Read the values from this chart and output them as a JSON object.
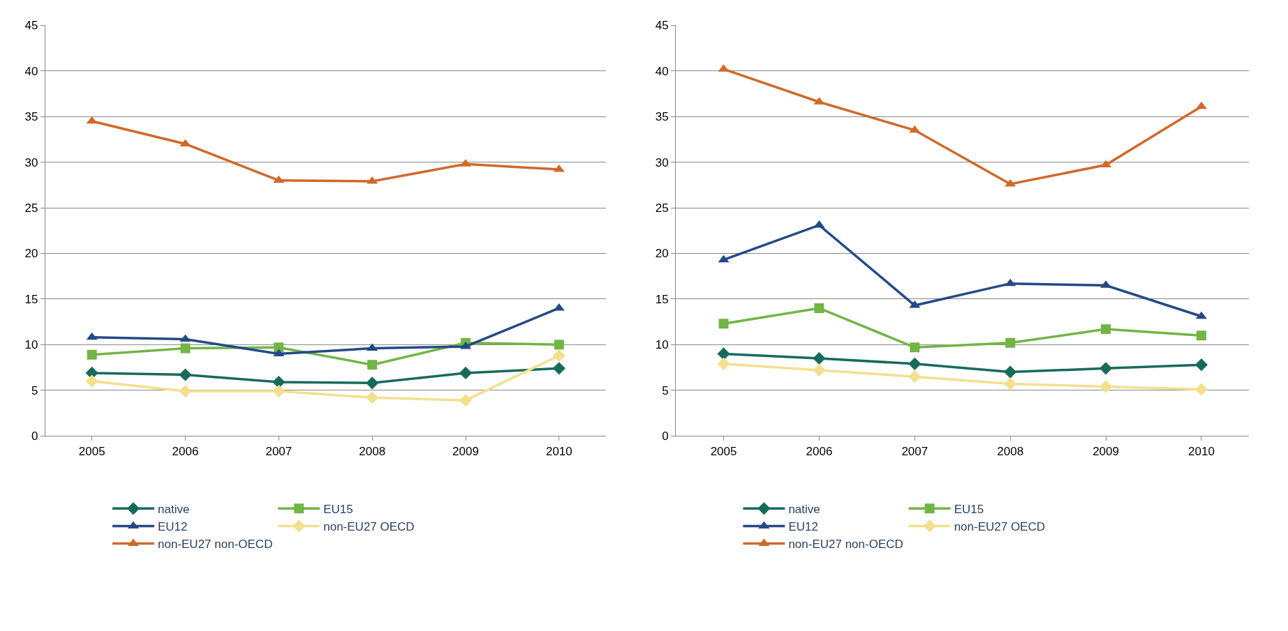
{
  "chart_data": [
    {
      "type": "line",
      "categories": [
        "2005",
        "2006",
        "2007",
        "2008",
        "2009",
        "2010"
      ],
      "ylim": [
        0,
        45
      ],
      "yticks": [
        0,
        5,
        10,
        15,
        20,
        25,
        30,
        35,
        40,
        45
      ],
      "grid": "y",
      "legend": "bottom",
      "line_style": "solid",
      "series": [
        {
          "name": "native",
          "color": "#176b5b",
          "marker": "diamond",
          "values": [
            6.9,
            6.7,
            5.9,
            5.8,
            6.9,
            7.4
          ]
        },
        {
          "name": "EU15",
          "color": "#71b545",
          "marker": "square",
          "values": [
            8.9,
            9.6,
            9.7,
            7.8,
            10.2,
            10.0
          ]
        },
        {
          "name": "EU12",
          "color": "#244a86",
          "marker": "triangle",
          "values": [
            10.8,
            10.6,
            9.0,
            9.6,
            9.8,
            14.0
          ]
        },
        {
          "name": "non-EU27 OECD",
          "color": "#f2e08e",
          "marker": "diamond",
          "values": [
            6.0,
            4.9,
            4.9,
            4.2,
            3.9,
            8.8
          ]
        },
        {
          "name": "non-EU27 non-OECD",
          "color": "#d0692a",
          "marker": "triangle",
          "values": [
            34.5,
            32.0,
            28.0,
            27.9,
            29.8,
            29.2
          ]
        }
      ]
    },
    {
      "type": "line",
      "categories": [
        "2005",
        "2006",
        "2007",
        "2008",
        "2009",
        "2010"
      ],
      "ylim": [
        0,
        45
      ],
      "yticks": [
        0,
        5,
        10,
        15,
        20,
        25,
        30,
        35,
        40,
        45
      ],
      "grid": "y",
      "legend": "bottom",
      "line_style": "solid",
      "series": [
        {
          "name": "native",
          "color": "#176b5b",
          "marker": "diamond",
          "values": [
            9.0,
            8.5,
            7.9,
            7.0,
            7.4,
            7.8
          ]
        },
        {
          "name": "EU15",
          "color": "#71b545",
          "marker": "square",
          "values": [
            12.3,
            14.0,
            9.7,
            10.2,
            11.7,
            11.0
          ]
        },
        {
          "name": "EU12",
          "color": "#244a86",
          "marker": "triangle",
          "values": [
            19.3,
            23.1,
            14.3,
            16.7,
            16.5,
            13.1
          ]
        },
        {
          "name": "non-EU27 OECD",
          "color": "#f2e08e",
          "marker": "diamond",
          "values": [
            7.9,
            7.2,
            6.5,
            5.7,
            5.4,
            5.1
          ]
        },
        {
          "name": "non-EU27 non-OECD",
          "color": "#d0692a",
          "marker": "triangle",
          "values": [
            40.2,
            36.6,
            33.5,
            27.6,
            29.7,
            36.1
          ]
        }
      ]
    }
  ]
}
